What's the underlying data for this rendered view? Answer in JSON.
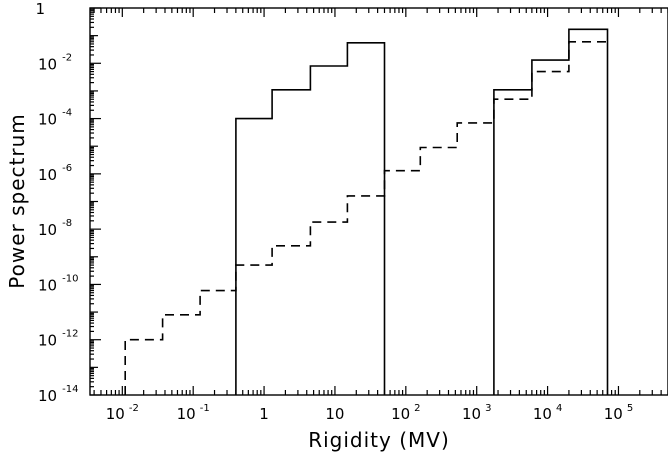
{
  "chart_data": {
    "type": "line",
    "title": "",
    "xlabel": "Rigidity (MV)",
    "ylabel": "Power spectrum",
    "xscale": "log",
    "yscale": "log",
    "xlim": [
      0.0035,
      500000
    ],
    "ylim": [
      1e-14,
      1
    ],
    "grid": false,
    "x_ticks": [
      {
        "value": 0.01,
        "base": "10",
        "exp": "-2"
      },
      {
        "value": 0.1,
        "base": "10",
        "exp": "-1"
      },
      {
        "value": 1,
        "base": "1",
        "exp": ""
      },
      {
        "value": 10,
        "base": "10",
        "exp": ""
      },
      {
        "value": 100,
        "base": "10",
        "exp": "2"
      },
      {
        "value": 1000,
        "base": "10",
        "exp": "3"
      },
      {
        "value": 10000,
        "base": "10",
        "exp": "4"
      },
      {
        "value": 100000,
        "base": "10",
        "exp": "5"
      }
    ],
    "y_ticks": [
      {
        "value": 1,
        "base": "1",
        "exp": ""
      },
      {
        "value": 0.01,
        "base": "10",
        "exp": "-2"
      },
      {
        "value": 0.0001,
        "base": "10",
        "exp": "-4"
      },
      {
        "value": 1e-06,
        "base": "10",
        "exp": "-6"
      },
      {
        "value": 1e-08,
        "base": "10",
        "exp": "-8"
      },
      {
        "value": 1e-10,
        "base": "10",
        "exp": "-10"
      },
      {
        "value": 1e-12,
        "base": "10",
        "exp": "-12"
      },
      {
        "value": 1e-14,
        "base": "10",
        "exp": "-14"
      }
    ],
    "series": [
      {
        "style": "solid",
        "segments": [
          [
            [
              0.4,
              1e-14
            ],
            [
              0.4,
              0.0001
            ],
            [
              1.3,
              0.0001
            ],
            [
              1.3,
              0.0011
            ],
            [
              4.5,
              0.0011
            ],
            [
              4.5,
              0.008
            ],
            [
              15,
              0.008
            ],
            [
              15,
              0.055
            ],
            [
              50,
              0.055
            ],
            [
              50,
              1e-14
            ]
          ],
          [
            [
              1750,
              1e-14
            ],
            [
              1750,
              0.0011
            ],
            [
              6000,
              0.0011
            ],
            [
              6000,
              0.013
            ],
            [
              20000,
              0.013
            ],
            [
              20000,
              0.17
            ],
            [
              70000,
              0.17
            ],
            [
              70000,
              1e-14
            ]
          ]
        ]
      },
      {
        "style": "dashed",
        "segments": [
          [
            [
              0.011,
              1e-14
            ],
            [
              0.011,
              1e-12
            ],
            [
              0.037,
              1e-12
            ],
            [
              0.037,
              8e-12
            ],
            [
              0.125,
              8e-12
            ],
            [
              0.125,
              6e-11
            ],
            [
              0.4,
              6e-11
            ],
            [
              0.4,
              5e-10
            ],
            [
              1.3,
              5e-10
            ],
            [
              1.3,
              2.5e-09
            ],
            [
              4.5,
              2.5e-09
            ],
            [
              4.5,
              1.8e-08
            ],
            [
              15,
              1.8e-08
            ],
            [
              15,
              1.6e-07
            ],
            [
              50,
              1.6e-07
            ],
            [
              50,
              1.3e-06
            ],
            [
              160,
              1.3e-06
            ],
            [
              160,
              9e-06
            ],
            [
              530,
              9e-06
            ],
            [
              530,
              7e-05
            ],
            [
              1750,
              7e-05
            ],
            [
              1750,
              0.0005
            ],
            [
              6000,
              0.0005
            ],
            [
              6000,
              0.005
            ],
            [
              20000,
              0.005
            ],
            [
              20000,
              0.06
            ],
            [
              70000,
              0.06
            ]
          ]
        ]
      }
    ]
  }
}
